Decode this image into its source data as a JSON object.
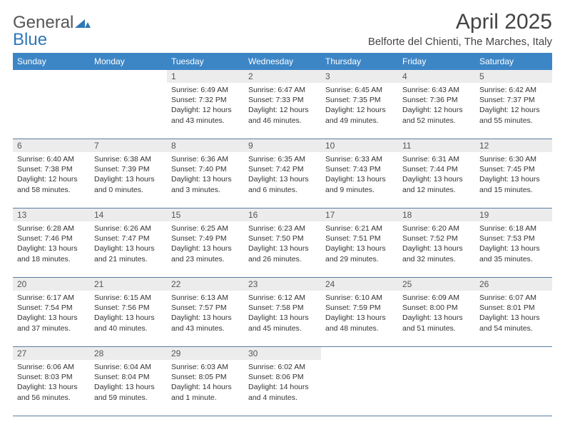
{
  "brand": {
    "name1": "General",
    "name2": "Blue"
  },
  "title": "April 2025",
  "location": "Belforte del Chienti, The Marches, Italy",
  "colors": {
    "header_bg": "#3d86c6",
    "header_fg": "#ffffff",
    "daynum_bg": "#ececec",
    "rule": "#5a7da0",
    "brand_gray": "#555555",
    "brand_blue": "#2f77b6"
  },
  "day_headers": [
    "Sunday",
    "Monday",
    "Tuesday",
    "Wednesday",
    "Thursday",
    "Friday",
    "Saturday"
  ],
  "weeks": [
    [
      null,
      null,
      {
        "n": "1",
        "sr": "6:49 AM",
        "ss": "7:32 PM",
        "dl": "12 hours and 43 minutes."
      },
      {
        "n": "2",
        "sr": "6:47 AM",
        "ss": "7:33 PM",
        "dl": "12 hours and 46 minutes."
      },
      {
        "n": "3",
        "sr": "6:45 AM",
        "ss": "7:35 PM",
        "dl": "12 hours and 49 minutes."
      },
      {
        "n": "4",
        "sr": "6:43 AM",
        "ss": "7:36 PM",
        "dl": "12 hours and 52 minutes."
      },
      {
        "n": "5",
        "sr": "6:42 AM",
        "ss": "7:37 PM",
        "dl": "12 hours and 55 minutes."
      }
    ],
    [
      {
        "n": "6",
        "sr": "6:40 AM",
        "ss": "7:38 PM",
        "dl": "12 hours and 58 minutes."
      },
      {
        "n": "7",
        "sr": "6:38 AM",
        "ss": "7:39 PM",
        "dl": "13 hours and 0 minutes."
      },
      {
        "n": "8",
        "sr": "6:36 AM",
        "ss": "7:40 PM",
        "dl": "13 hours and 3 minutes."
      },
      {
        "n": "9",
        "sr": "6:35 AM",
        "ss": "7:42 PM",
        "dl": "13 hours and 6 minutes."
      },
      {
        "n": "10",
        "sr": "6:33 AM",
        "ss": "7:43 PM",
        "dl": "13 hours and 9 minutes."
      },
      {
        "n": "11",
        "sr": "6:31 AM",
        "ss": "7:44 PM",
        "dl": "13 hours and 12 minutes."
      },
      {
        "n": "12",
        "sr": "6:30 AM",
        "ss": "7:45 PM",
        "dl": "13 hours and 15 minutes."
      }
    ],
    [
      {
        "n": "13",
        "sr": "6:28 AM",
        "ss": "7:46 PM",
        "dl": "13 hours and 18 minutes."
      },
      {
        "n": "14",
        "sr": "6:26 AM",
        "ss": "7:47 PM",
        "dl": "13 hours and 21 minutes."
      },
      {
        "n": "15",
        "sr": "6:25 AM",
        "ss": "7:49 PM",
        "dl": "13 hours and 23 minutes."
      },
      {
        "n": "16",
        "sr": "6:23 AM",
        "ss": "7:50 PM",
        "dl": "13 hours and 26 minutes."
      },
      {
        "n": "17",
        "sr": "6:21 AM",
        "ss": "7:51 PM",
        "dl": "13 hours and 29 minutes."
      },
      {
        "n": "18",
        "sr": "6:20 AM",
        "ss": "7:52 PM",
        "dl": "13 hours and 32 minutes."
      },
      {
        "n": "19",
        "sr": "6:18 AM",
        "ss": "7:53 PM",
        "dl": "13 hours and 35 minutes."
      }
    ],
    [
      {
        "n": "20",
        "sr": "6:17 AM",
        "ss": "7:54 PM",
        "dl": "13 hours and 37 minutes."
      },
      {
        "n": "21",
        "sr": "6:15 AM",
        "ss": "7:56 PM",
        "dl": "13 hours and 40 minutes."
      },
      {
        "n": "22",
        "sr": "6:13 AM",
        "ss": "7:57 PM",
        "dl": "13 hours and 43 minutes."
      },
      {
        "n": "23",
        "sr": "6:12 AM",
        "ss": "7:58 PM",
        "dl": "13 hours and 45 minutes."
      },
      {
        "n": "24",
        "sr": "6:10 AM",
        "ss": "7:59 PM",
        "dl": "13 hours and 48 minutes."
      },
      {
        "n": "25",
        "sr": "6:09 AM",
        "ss": "8:00 PM",
        "dl": "13 hours and 51 minutes."
      },
      {
        "n": "26",
        "sr": "6:07 AM",
        "ss": "8:01 PM",
        "dl": "13 hours and 54 minutes."
      }
    ],
    [
      {
        "n": "27",
        "sr": "6:06 AM",
        "ss": "8:03 PM",
        "dl": "13 hours and 56 minutes."
      },
      {
        "n": "28",
        "sr": "6:04 AM",
        "ss": "8:04 PM",
        "dl": "13 hours and 59 minutes."
      },
      {
        "n": "29",
        "sr": "6:03 AM",
        "ss": "8:05 PM",
        "dl": "14 hours and 1 minute."
      },
      {
        "n": "30",
        "sr": "6:02 AM",
        "ss": "8:06 PM",
        "dl": "14 hours and 4 minutes."
      },
      null,
      null,
      null
    ]
  ],
  "labels": {
    "sunrise": "Sunrise:",
    "sunset": "Sunset:",
    "daylight": "Daylight:"
  }
}
